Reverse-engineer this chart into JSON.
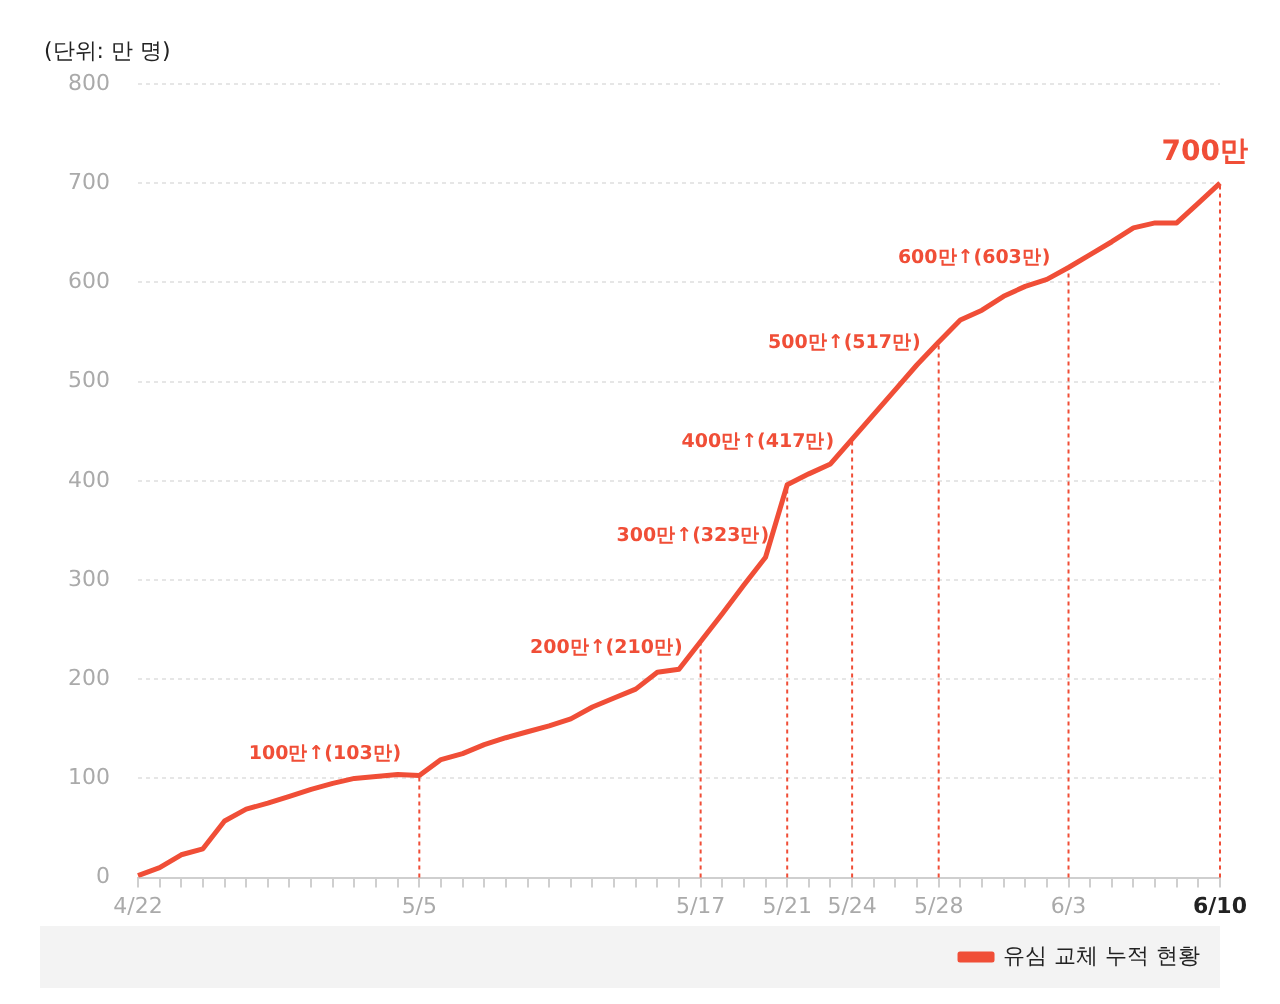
{
  "chart_data": {
    "type": "line",
    "ylabel": "(단위: 만 명)",
    "categories": [
      "4/22",
      null,
      null,
      null,
      null,
      null,
      null,
      null,
      null,
      null,
      null,
      null,
      null,
      "5/5",
      null,
      null,
      null,
      null,
      null,
      null,
      null,
      null,
      null,
      null,
      null,
      null,
      "5/17",
      null,
      null,
      null,
      "5/21",
      null,
      null,
      "5/24",
      null,
      null,
      null,
      "5/28",
      null,
      null,
      null,
      null,
      null,
      "6/3",
      null,
      null,
      null,
      null,
      null,
      null,
      "6/10"
    ],
    "series": [
      {
        "name": "유심 교체 누적 현황",
        "color": "#f04e37",
        "values": [
          2,
          10,
          23,
          29,
          57,
          69,
          75,
          82,
          89,
          95,
          100,
          102,
          104,
          103,
          119,
          125,
          134,
          141,
          147,
          153,
          160,
          172,
          181,
          190,
          207,
          210,
          238,
          266,
          295,
          323,
          396,
          407,
          417,
          442,
          467,
          492,
          517,
          540,
          562,
          572,
          586,
          596,
          603,
          615,
          628,
          641,
          655,
          660,
          660,
          680,
          700
        ]
      }
    ],
    "ylim": [
      0,
      800
    ],
    "yticks": [
      0,
      100,
      200,
      300,
      400,
      500,
      600,
      700,
      800
    ],
    "grid": "y",
    "legend": "bottom right",
    "marker": "none",
    "line_style": "solid",
    "ref_lines": [
      {
        "axis": "x",
        "value": "5/5",
        "color": "#f04e37",
        "line_style": "dotted"
      },
      {
        "axis": "x",
        "value": "5/17",
        "color": "#f04e37",
        "line_style": "dotted"
      },
      {
        "axis": "x",
        "value": "5/21",
        "color": "#f04e37",
        "line_style": "dotted"
      },
      {
        "axis": "x",
        "value": "5/24",
        "color": "#f04e37",
        "line_style": "dotted"
      },
      {
        "axis": "x",
        "value": "5/28",
        "color": "#f04e37",
        "line_style": "dotted"
      },
      {
        "axis": "x",
        "value": "6/3",
        "color": "#f04e37",
        "line_style": "dotted"
      },
      {
        "axis": "x",
        "value": "6/10",
        "color": "#f04e37",
        "line_style": "dotted"
      }
    ],
    "annotations": [
      {
        "text": "100만↑(103만)",
        "x": "5/5",
        "y": 103
      },
      {
        "text": "200만↑(210만)",
        "x": "5/17",
        "y": 210
      },
      {
        "text": "300만↑(323만)",
        "x": "5/21",
        "y": 323
      },
      {
        "text": "400만↑(417만)",
        "x": "5/24",
        "y": 417
      },
      {
        "text": "500만↑(517만)",
        "x": "5/28",
        "y": 517
      },
      {
        "text": "600만↑(603만)",
        "x": "6/3",
        "y": 603
      },
      {
        "text": "700만",
        "x": "6/10",
        "y": 700
      }
    ]
  }
}
